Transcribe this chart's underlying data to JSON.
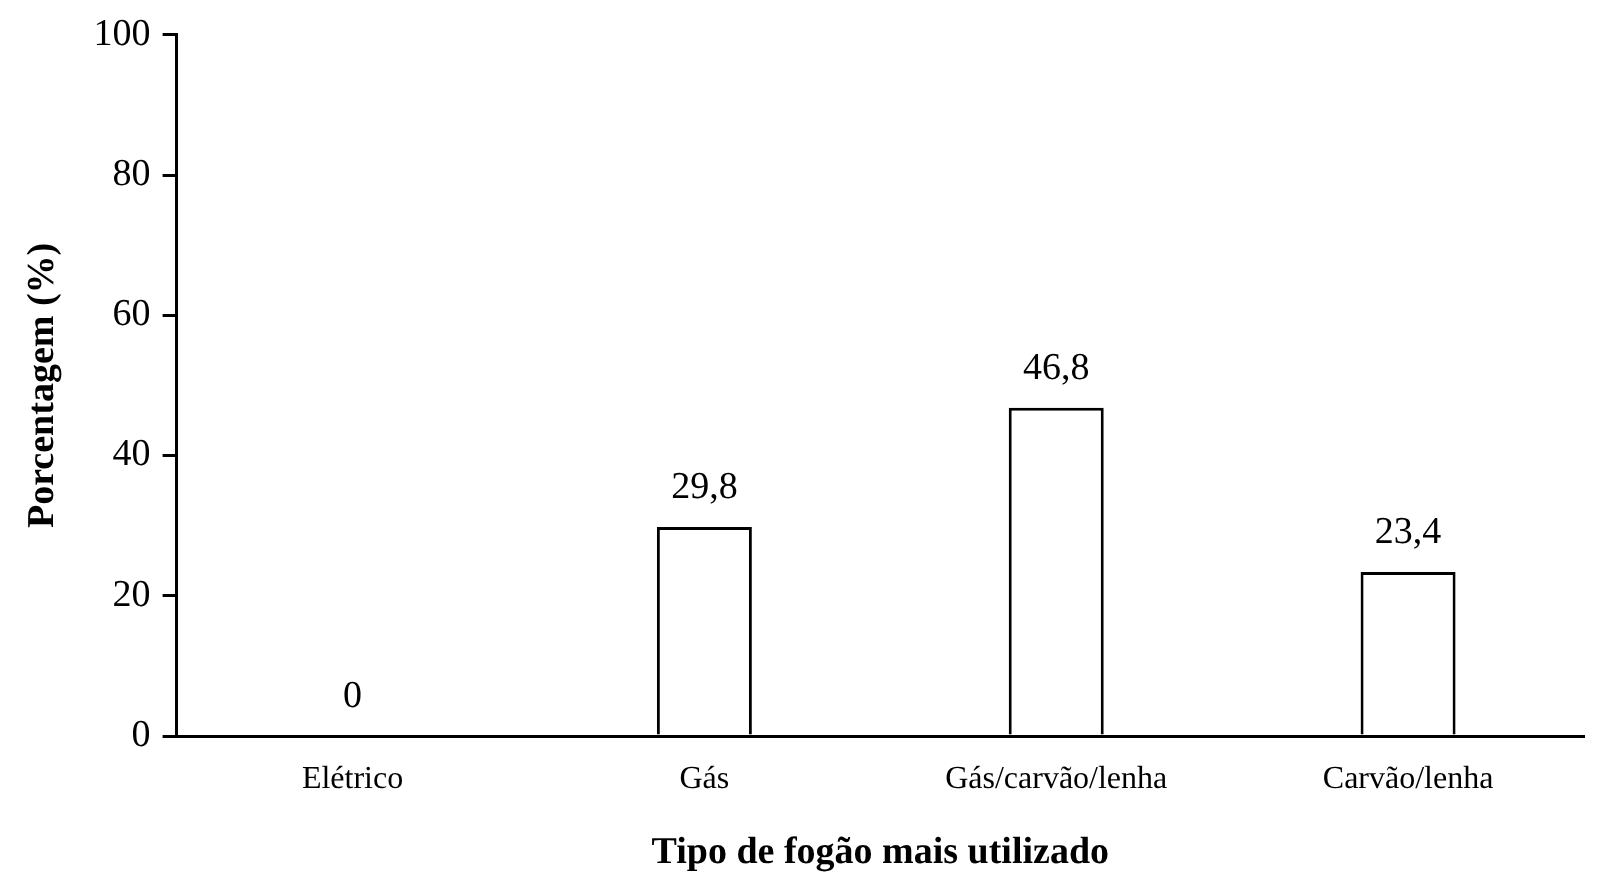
{
  "chart_data": {
    "type": "bar",
    "xlabel": "Tipo de fogão mais utilizado",
    "ylabel": "Porcentagem (%)",
    "categories": [
      "Elétrico",
      "Gás",
      "Gás/carvão/lenha",
      "Carvão/lenha"
    ],
    "values": [
      0,
      29.8,
      46.8,
      23.4
    ],
    "color": "#ffffff",
    "value_labels": [
      "0",
      "29,8",
      "46,8",
      "23,4"
    ],
    "ylim": [
      0,
      100
    ],
    "yticks": [
      0,
      20,
      40,
      60,
      80,
      100
    ],
    "grid": false,
    "legend": false
  }
}
